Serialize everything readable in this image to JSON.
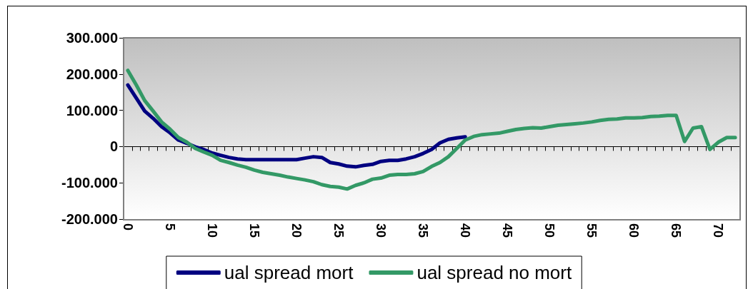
{
  "chart_data": {
    "type": "line",
    "categories": [
      "0",
      null,
      null,
      null,
      null,
      "5",
      null,
      null,
      null,
      null,
      "10",
      null,
      null,
      null,
      null,
      "15",
      null,
      null,
      null,
      null,
      "20",
      null,
      null,
      null,
      null,
      "25",
      null,
      null,
      null,
      null,
      "30",
      null,
      null,
      null,
      null,
      "35",
      null,
      null,
      null,
      null,
      "40",
      null,
      null,
      null,
      null,
      "45",
      null,
      null,
      null,
      null,
      "50",
      null,
      null,
      null,
      null,
      "55",
      null,
      null,
      null,
      null,
      "60",
      null,
      null,
      null,
      null,
      "65",
      null,
      null,
      null,
      null,
      "70",
      null,
      null
    ],
    "series": [
      {
        "name": "ual spread mort",
        "color": "#000080",
        "values": [
          170000,
          134000,
          98000,
          78000,
          55000,
          38000,
          18000,
          9000,
          -1000,
          -8000,
          -18000,
          -24000,
          -30000,
          -34000,
          -36000,
          -36000,
          -36000,
          -36000,
          -36000,
          -36000,
          -36000,
          -32000,
          -28000,
          -30000,
          -44000,
          -48000,
          -54000,
          -56000,
          -52000,
          -49000,
          -41000,
          -38000,
          -38000,
          -34000,
          -28000,
          -19000,
          -8000,
          10000,
          20000,
          24000,
          27000,
          null,
          null,
          null,
          null,
          null,
          null,
          null,
          null,
          null,
          null,
          null,
          null,
          null,
          null,
          null,
          null,
          null,
          null,
          null,
          null,
          null,
          null,
          null,
          null,
          null,
          null,
          null,
          null,
          null,
          null,
          null,
          null
        ]
      },
      {
        "name": "ual spread no mort",
        "color": "#339966",
        "values": [
          210000,
          170000,
          127000,
          98000,
          68000,
          48000,
          25000,
          12000,
          -5000,
          -15000,
          -24000,
          -38000,
          -44000,
          -51000,
          -57000,
          -65000,
          -71000,
          -75000,
          -79000,
          -84000,
          -88000,
          -92000,
          -97000,
          -105000,
          -110000,
          -112000,
          -117000,
          -107000,
          -100000,
          -90000,
          -87000,
          -79000,
          -77000,
          -77000,
          -75000,
          -69000,
          -55000,
          -44000,
          -28000,
          -5000,
          18000,
          28000,
          33000,
          35000,
          37000,
          42000,
          47000,
          50000,
          52000,
          51000,
          55000,
          59000,
          61000,
          63000,
          65000,
          68000,
          72000,
          75000,
          76000,
          79000,
          79000,
          80000,
          83000,
          84000,
          86000,
          86000,
          14000,
          51000,
          55000,
          -8000,
          12000,
          25000,
          25000
        ]
      }
    ],
    "ylim": [
      -200000,
      300000
    ],
    "yticks": [
      {
        "value": -200000,
        "label": "-200.000"
      },
      {
        "value": -100000,
        "label": "-100.000"
      },
      {
        "value": 0,
        "label": "0"
      },
      {
        "value": 100000,
        "label": "100.000"
      },
      {
        "value": 200000,
        "label": "200.000"
      },
      {
        "value": 300000,
        "label": "300.000"
      }
    ],
    "legend": "bottom",
    "marker": "none",
    "line_style": "solid"
  }
}
